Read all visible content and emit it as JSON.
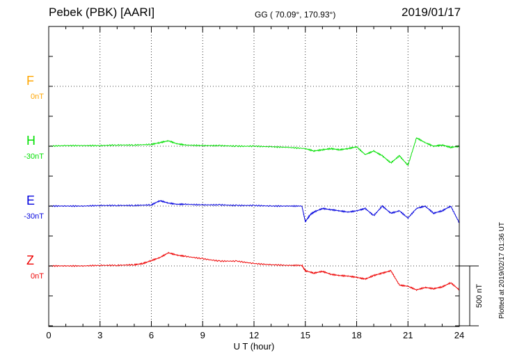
{
  "header": {
    "station": "Pebek (PBK)  [AARI]",
    "coords": "GG ( 70.09°, 170.93°)",
    "date": "2019/01/17"
  },
  "plotted_note": "Plotted at 2019/02/17 01:36 UT",
  "colors": {
    "F": "#ffa500",
    "H": "#00e000",
    "E": "#0000dd",
    "Z": "#ee0000",
    "axis": "#000000"
  },
  "chart_data": {
    "type": "line",
    "title": "Pebek (PBK)  [AARI]",
    "xlabel": "U T (hour)",
    "ylabel": "",
    "xlim": [
      0,
      24
    ],
    "x_ticks": [
      0,
      3,
      6,
      9,
      12,
      15,
      18,
      21,
      24
    ],
    "grid": true,
    "scale_bar": {
      "label": "500 nT",
      "value_nT": 500
    },
    "series": [
      {
        "name": "F",
        "baseline": "0nT",
        "x": [],
        "y": []
      },
      {
        "name": "H",
        "baseline": "-30nT",
        "x": [
          0,
          1,
          2,
          3,
          4,
          5,
          6,
          6.5,
          7,
          7.5,
          8,
          9,
          10,
          11,
          12,
          13,
          14,
          15,
          15.5,
          16,
          16.5,
          17,
          17.5,
          18,
          18.5,
          19,
          19.5,
          20,
          20.5,
          21,
          21.5,
          22,
          22.5,
          23,
          23.5,
          24
        ],
        "y": [
          0,
          5,
          5,
          5,
          10,
          10,
          15,
          30,
          45,
          20,
          10,
          5,
          5,
          0,
          0,
          -5,
          -10,
          -20,
          -40,
          -30,
          -20,
          -30,
          -20,
          -5,
          -70,
          -40,
          -80,
          -140,
          -80,
          -160,
          70,
          30,
          0,
          10,
          -10,
          0
        ]
      },
      {
        "name": "E",
        "baseline": "-30nT",
        "x": [
          0,
          1,
          2,
          3,
          4,
          5,
          6,
          6.5,
          7,
          7.5,
          8,
          9,
          10,
          11,
          12,
          13,
          14,
          14.8,
          15,
          15.3,
          15.5,
          16,
          16.5,
          17,
          17.5,
          18,
          18.5,
          19,
          19.5,
          20,
          20.5,
          21,
          21.5,
          22,
          22.5,
          23,
          23.5,
          24
        ],
        "y": [
          0,
          0,
          0,
          5,
          5,
          5,
          10,
          45,
          25,
          15,
          15,
          10,
          10,
          5,
          5,
          0,
          0,
          0,
          -130,
          -70,
          -50,
          -20,
          -30,
          -40,
          -50,
          -40,
          -20,
          -80,
          0,
          -60,
          -40,
          -100,
          -20,
          0,
          -60,
          -40,
          0,
          -140
        ]
      },
      {
        "name": "Z",
        "baseline": "0nT",
        "x": [
          0,
          1,
          2,
          3,
          4,
          5,
          5.5,
          6,
          6.5,
          7,
          7.5,
          8,
          9,
          10,
          11,
          12,
          13,
          14,
          14.8,
          15,
          15.5,
          16,
          16.5,
          17,
          17.5,
          18,
          18.5,
          19,
          19.5,
          20,
          20.5,
          21,
          21.5,
          22,
          22.5,
          23,
          23.5,
          24
        ],
        "y": [
          0,
          0,
          0,
          5,
          5,
          10,
          20,
          45,
          70,
          110,
          90,
          80,
          60,
          40,
          40,
          20,
          10,
          5,
          5,
          -40,
          -60,
          -45,
          -70,
          -80,
          -85,
          -95,
          -110,
          -80,
          -60,
          -40,
          -160,
          -170,
          -200,
          -180,
          -190,
          -175,
          -140,
          -200
        ]
      }
    ]
  }
}
